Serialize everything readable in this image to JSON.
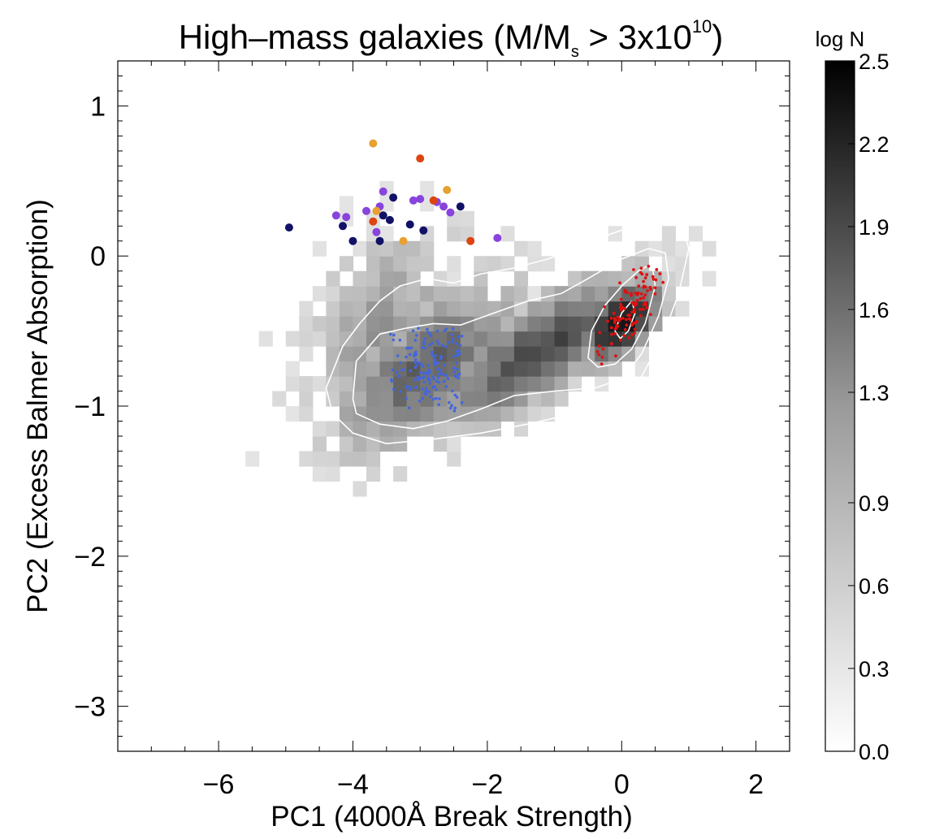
{
  "chart_data": {
    "type": "heatmap",
    "title": "High–mass galaxies (M/M",
    "title_sub": "s",
    "title_rel": " > 3x10",
    "title_sup": "10",
    "title_close": ")",
    "xlabel": "PC1 (4000Å Break Strength)",
    "ylabel": "PC2 (Excess Balmer Absorption)",
    "xlim": [
      -7.5,
      2.5
    ],
    "ylim": [
      -3.3,
      1.3
    ],
    "xticks": [
      -6,
      -4,
      -2,
      0,
      2
    ],
    "xtick_labels": [
      "−6",
      "−4",
      "−2",
      "0",
      "2"
    ],
    "yticks": [
      -3,
      -2,
      -1,
      0,
      1
    ],
    "ytick_labels": [
      "−3",
      "−2",
      "−1",
      "0",
      "1"
    ],
    "colorbar": {
      "label": "log N",
      "range": [
        0.0,
        2.5
      ],
      "ticks": [
        0.0,
        0.3,
        0.6,
        0.9,
        1.3,
        1.6,
        1.9,
        2.2,
        2.5
      ],
      "tick_labels": [
        "0.0",
        "0.3",
        "0.6",
        "0.9",
        "1.3",
        "1.6",
        "1.9",
        "2.2",
        "2.5"
      ]
    },
    "density": {
      "description_bins": "2D histogram of log N in PC1-PC2 bins (0.2 x 0.1)",
      "bin_width_x": 0.2,
      "bin_width_y": 0.1,
      "ridge_slope": 0.255,
      "ridge_x0": 0.0,
      "ridge_y0": -0.44,
      "peaks": [
        {
          "x": 0.0,
          "y": -0.44,
          "sx": 0.42,
          "sy": 0.16,
          "amp": 2.5
        },
        {
          "x": -1.2,
          "y": -0.62,
          "sx": 1.1,
          "sy": 0.22,
          "amp": 1.85
        },
        {
          "x": -2.9,
          "y": -0.75,
          "sx": 0.95,
          "sy": 0.3,
          "amp": 1.55
        },
        {
          "x": -3.6,
          "y": -0.45,
          "sx": 0.8,
          "sy": 0.4,
          "amp": 0.95
        }
      ],
      "x_min_extent": -5.6,
      "x_max_extent": 1.4,
      "y_min_extent": -1.7,
      "y_max_extent": 0.7
    },
    "contours": [
      {
        "level": "outer",
        "points": [
          [
            -4.4,
            -0.88
          ],
          [
            -4.15,
            -0.6
          ],
          [
            -3.9,
            -0.45
          ],
          [
            -3.6,
            -0.3
          ],
          [
            -3.3,
            -0.2
          ],
          [
            -2.9,
            -0.15
          ],
          [
            -2.5,
            -0.18
          ],
          [
            -2.1,
            -0.12
          ],
          [
            -1.6,
            -0.08
          ],
          [
            -1.1,
            -0.02
          ],
          [
            -0.6,
            0.06
          ],
          [
            -0.2,
            0.14
          ],
          [
            0.3,
            0.22
          ],
          [
            0.7,
            0.3
          ],
          [
            0.9,
            0.2
          ],
          [
            1.0,
            0.05
          ],
          [
            0.85,
            -0.25
          ],
          [
            0.6,
            -0.55
          ],
          [
            0.3,
            -0.8
          ],
          [
            -0.1,
            -0.95
          ],
          [
            -0.7,
            -1.05
          ],
          [
            -1.4,
            -1.12
          ],
          [
            -2.1,
            -1.18
          ],
          [
            -2.8,
            -1.22
          ],
          [
            -3.5,
            -1.25
          ],
          [
            -4.0,
            -1.18
          ],
          [
            -4.3,
            -1.05
          ],
          [
            -4.4,
            -0.88
          ]
        ]
      },
      {
        "level": "middle",
        "points": [
          [
            -4.0,
            -0.95
          ],
          [
            -3.95,
            -0.7
          ],
          [
            -3.6,
            -0.52
          ],
          [
            -3.2,
            -0.48
          ],
          [
            -2.8,
            -0.45
          ],
          [
            -2.4,
            -0.46
          ],
          [
            -1.9,
            -0.38
          ],
          [
            -1.4,
            -0.3
          ],
          [
            -0.9,
            -0.25
          ],
          [
            -0.5,
            -0.15
          ],
          [
            0.0,
            -0.02
          ],
          [
            0.4,
            0.05
          ],
          [
            0.65,
            0.02
          ],
          [
            0.7,
            -0.15
          ],
          [
            0.55,
            -0.4
          ],
          [
            0.3,
            -0.65
          ],
          [
            0.0,
            -0.82
          ],
          [
            -0.4,
            -0.88
          ],
          [
            -1.0,
            -0.9
          ],
          [
            -1.6,
            -0.93
          ],
          [
            -2.1,
            -1.02
          ],
          [
            -2.6,
            -1.1
          ],
          [
            -3.1,
            -1.15
          ],
          [
            -3.6,
            -1.12
          ],
          [
            -3.95,
            -1.05
          ],
          [
            -4.0,
            -0.95
          ]
        ]
      },
      {
        "level": "inner",
        "points": [
          [
            -0.5,
            -0.68
          ],
          [
            -0.45,
            -0.5
          ],
          [
            -0.25,
            -0.33
          ],
          [
            0.0,
            -0.2
          ],
          [
            0.25,
            -0.1
          ],
          [
            0.45,
            -0.05
          ],
          [
            0.5,
            -0.2
          ],
          [
            0.35,
            -0.45
          ],
          [
            0.15,
            -0.62
          ],
          [
            -0.1,
            -0.72
          ],
          [
            -0.35,
            -0.74
          ],
          [
            -0.5,
            -0.68
          ]
        ]
      },
      {
        "level": "core",
        "points": [
          [
            -0.1,
            -0.5
          ],
          [
            0.0,
            -0.38
          ],
          [
            0.15,
            -0.3
          ],
          [
            0.2,
            -0.38
          ],
          [
            0.1,
            -0.5
          ],
          [
            -0.02,
            -0.55
          ],
          [
            -0.1,
            -0.5
          ]
        ]
      }
    ],
    "red_cluster": {
      "center": [
        0.1,
        -0.38
      ],
      "spread": [
        0.32,
        0.14
      ],
      "ridge_slope": 0.9,
      "count": 130,
      "color": "#dd1111"
    },
    "blue_cluster": {
      "center": [
        -2.9,
        -0.75
      ],
      "spread": [
        0.32,
        0.17
      ],
      "count": 200,
      "color": "#4466dd"
    },
    "large_points": [
      {
        "x": -4.95,
        "y": 0.19,
        "color": "#111166"
      },
      {
        "x": -4.15,
        "y": 0.2,
        "color": "#111166"
      },
      {
        "x": -4.0,
        "y": 0.1,
        "color": "#111166"
      },
      {
        "x": -3.6,
        "y": 0.1,
        "color": "#111166"
      },
      {
        "x": -3.55,
        "y": 0.27,
        "color": "#111166"
      },
      {
        "x": -3.45,
        "y": 0.24,
        "color": "#111166"
      },
      {
        "x": -3.4,
        "y": 0.39,
        "color": "#111166"
      },
      {
        "x": -3.15,
        "y": 0.21,
        "color": "#111166"
      },
      {
        "x": -2.95,
        "y": 0.17,
        "color": "#111166"
      },
      {
        "x": -2.4,
        "y": 0.33,
        "color": "#111166"
      },
      {
        "x": -4.25,
        "y": 0.27,
        "color": "#8844dd"
      },
      {
        "x": -4.1,
        "y": 0.26,
        "color": "#8844dd"
      },
      {
        "x": -3.8,
        "y": 0.3,
        "color": "#8844dd"
      },
      {
        "x": -3.65,
        "y": 0.16,
        "color": "#8844dd"
      },
      {
        "x": -3.6,
        "y": 0.33,
        "color": "#8844dd"
      },
      {
        "x": -3.55,
        "y": 0.43,
        "color": "#8844dd"
      },
      {
        "x": -3.1,
        "y": 0.37,
        "color": "#8844dd"
      },
      {
        "x": -3.0,
        "y": 0.38,
        "color": "#8844dd"
      },
      {
        "x": -2.75,
        "y": 0.36,
        "color": "#8844dd"
      },
      {
        "x": -2.65,
        "y": 0.33,
        "color": "#8844dd"
      },
      {
        "x": -2.55,
        "y": 0.29,
        "color": "#8844dd"
      },
      {
        "x": -1.85,
        "y": 0.12,
        "color": "#8844dd"
      },
      {
        "x": -3.7,
        "y": 0.75,
        "color": "#e8a030"
      },
      {
        "x": -3.65,
        "y": 0.3,
        "color": "#e8a030"
      },
      {
        "x": -3.25,
        "y": 0.1,
        "color": "#e8a030"
      },
      {
        "x": -2.6,
        "y": 0.44,
        "color": "#e8a030"
      },
      {
        "x": -3.0,
        "y": 0.65,
        "color": "#dd4411"
      },
      {
        "x": -2.8,
        "y": 0.37,
        "color": "#dd4411"
      },
      {
        "x": -3.7,
        "y": 0.23,
        "color": "#dd4411"
      },
      {
        "x": -2.25,
        "y": 0.1,
        "color": "#dd4411"
      }
    ]
  }
}
